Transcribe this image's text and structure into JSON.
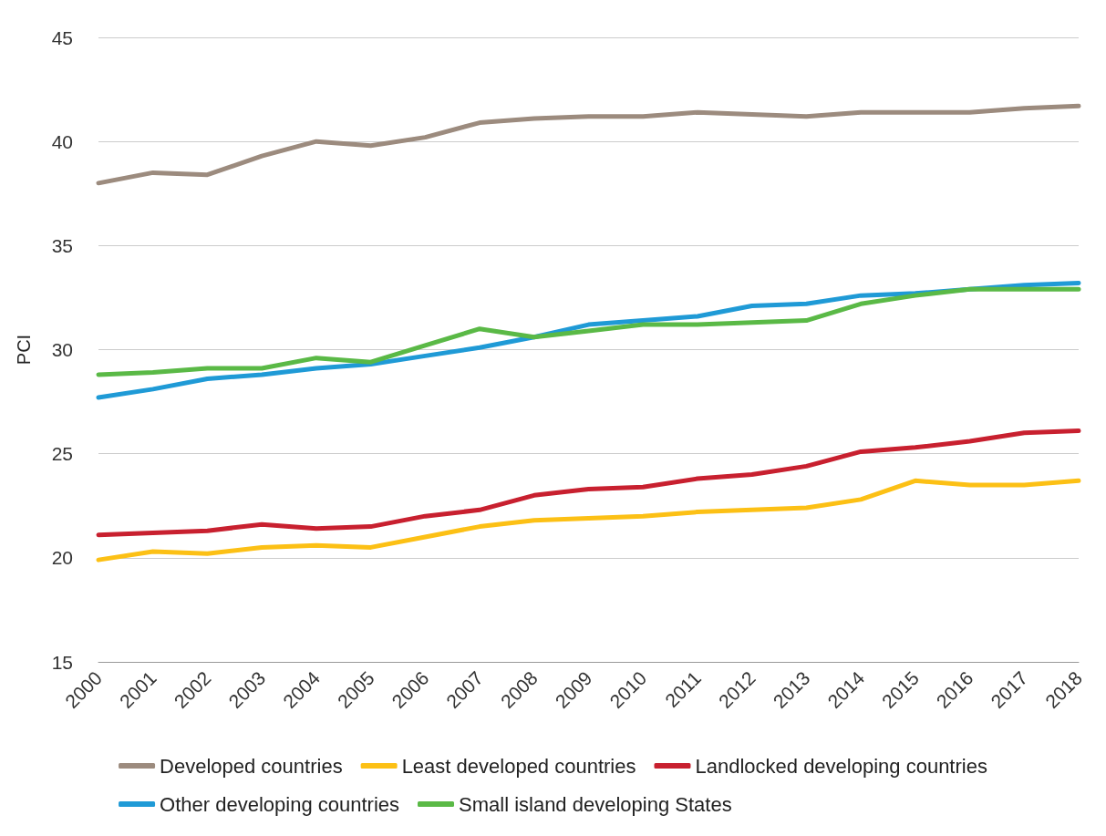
{
  "chart_data": {
    "type": "line",
    "ylabel": "PCI",
    "categories": [
      "2000",
      "2001",
      "2002",
      "2003",
      "2004",
      "2005",
      "2006",
      "2007",
      "2008",
      "2009",
      "2010",
      "2011",
      "2012",
      "2013",
      "2014",
      "2015",
      "2016",
      "2017",
      "2018"
    ],
    "ylim": [
      15,
      45
    ],
    "yticks": [
      15,
      20,
      25,
      30,
      35,
      40,
      45
    ],
    "grid": "y",
    "legend": "bottom",
    "marker": "none",
    "line_style": "solid",
    "series": [
      {
        "name": "Developed countries",
        "color": "#9c8b7e",
        "values": [
          38.0,
          38.5,
          38.4,
          39.3,
          40.0,
          39.8,
          40.2,
          40.9,
          41.1,
          41.2,
          41.2,
          41.4,
          41.3,
          41.2,
          41.4,
          41.4,
          41.4,
          41.6,
          41.7
        ]
      },
      {
        "name": "Least developed countries",
        "color": "#fcc015",
        "values": [
          19.9,
          20.3,
          20.2,
          20.5,
          20.6,
          20.5,
          21.0,
          21.5,
          21.8,
          21.9,
          22.0,
          22.2,
          22.3,
          22.4,
          22.8,
          23.7,
          23.5,
          23.5,
          23.7
        ]
      },
      {
        "name": "Landlocked developing countries",
        "color": "#c8202f",
        "values": [
          21.1,
          21.2,
          21.3,
          21.6,
          21.4,
          21.5,
          22.0,
          22.3,
          23.0,
          23.3,
          23.4,
          23.8,
          24.0,
          24.4,
          25.1,
          25.3,
          25.6,
          26.0,
          26.1
        ]
      },
      {
        "name": "Other developing countries",
        "color": "#1f9ad6",
        "values": [
          27.7,
          28.1,
          28.6,
          28.8,
          29.1,
          29.3,
          29.7,
          30.1,
          30.6,
          31.2,
          31.4,
          31.6,
          32.1,
          32.2,
          32.6,
          32.7,
          32.9,
          33.1,
          33.2
        ]
      },
      {
        "name": "Small island developing States",
        "color": "#5ab946",
        "values": [
          28.8,
          28.9,
          29.1,
          29.1,
          29.6,
          29.4,
          30.2,
          31.0,
          30.6,
          30.9,
          31.2,
          31.2,
          31.3,
          31.4,
          32.2,
          32.6,
          32.9,
          32.9,
          32.9
        ]
      }
    ]
  }
}
